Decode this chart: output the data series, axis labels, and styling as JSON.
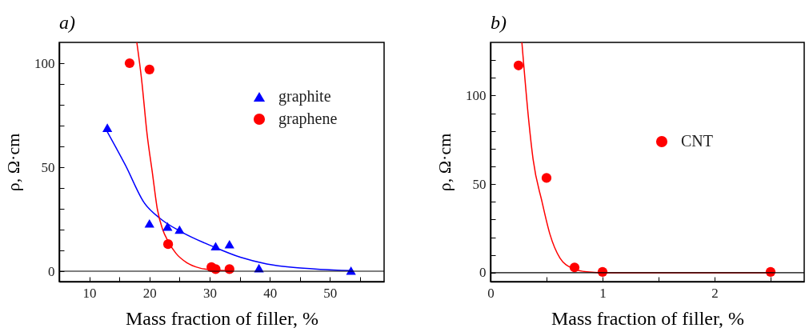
{
  "chart_data": [
    {
      "type": "scatter",
      "title": "a)",
      "xlabel": "Mass fraction of filler, %",
      "ylabel": "ρ, Ω·cm",
      "xlim": [
        5,
        59
      ],
      "ylim": [
        -5,
        110
      ],
      "xticks": [
        10,
        {
          "value": 15,
          "label": null
        },
        20,
        {
          "value": 25,
          "label": null
        },
        30,
        {
          "value": 35,
          "label": null
        },
        40,
        {
          "value": 45,
          "label": null
        },
        50,
        {
          "value": 55,
          "label": null
        }
      ],
      "yticks": [
        0,
        {
          "value": 10,
          "label": null
        },
        {
          "value": 20,
          "label": null
        },
        {
          "value": 30,
          "label": null
        },
        {
          "value": 40,
          "label": null
        },
        50,
        {
          "value": 60,
          "label": null
        },
        {
          "value": 70,
          "label": null
        },
        {
          "value": 80,
          "label": null
        },
        {
          "value": 90,
          "label": null
        },
        100
      ],
      "grid": false,
      "legend": "top right",
      "ref_lines": [
        {
          "axis": "y",
          "value": 0,
          "color": "#000000"
        }
      ],
      "series": [
        {
          "name": "graphite",
          "color": "#0000ff",
          "marker": "triangle",
          "x": [
            13,
            20,
            23,
            25,
            31,
            33.3,
            38.2,
            53.5
          ],
          "values": [
            69,
            23,
            21.5,
            20,
            12,
            13,
            1.5,
            0.3
          ]
        },
        {
          "name": "graphene",
          "color": "#ff0000",
          "marker": "circle",
          "x": [
            16.7,
            20,
            23.1,
            30.3,
            31,
            33.3
          ],
          "values": [
            100,
            97,
            13,
            2,
            1,
            1
          ]
        },
        {
          "type": "line",
          "color": "#0000ff",
          "x": [
            13,
            16,
            19.1,
            21.8,
            25.3,
            30.6,
            35.1,
            39.5,
            43.9,
            48.4,
            53.5
          ],
          "values": [
            67,
            51,
            33,
            25.3,
            18.9,
            11.8,
            6.7,
            3.5,
            1.8,
            0.9,
            0.3
          ]
        },
        {
          "type": "line",
          "color": "#ff0000",
          "x": [
            17.9,
            18.7,
            19.6,
            20.5,
            21.3,
            22.2,
            23.1,
            24.4,
            26.2,
            28.4,
            30.6,
            33.3
          ],
          "values": [
            110,
            92,
            66,
            47,
            30,
            20,
            14.4,
            8.6,
            4.1,
            1.5,
            0.6,
            0.3
          ]
        }
      ]
    },
    {
      "type": "scatter",
      "title": "b)",
      "xlabel": "Mass fraction of filler, %",
      "ylabel": "ρ, Ω·cm",
      "xlim": [
        0,
        2.8
      ],
      "ylim": [
        -5,
        130
      ],
      "xticks": [
        0,
        {
          "value": 0.5,
          "label": null
        },
        1,
        {
          "value": 1.5,
          "label": null
        },
        2,
        {
          "value": 2.5,
          "label": null
        }
      ],
      "yticks": [
        0,
        {
          "value": 10,
          "label": null
        },
        {
          "value": 20,
          "label": null
        },
        {
          "value": 30,
          "label": null
        },
        {
          "value": 40,
          "label": null
        },
        50,
        {
          "value": 60,
          "label": null
        },
        {
          "value": 70,
          "label": null
        },
        {
          "value": 80,
          "label": null
        },
        {
          "value": 90,
          "label": null
        },
        100,
        {
          "value": 110,
          "label": null
        },
        {
          "value": 120,
          "label": null
        }
      ],
      "grid": false,
      "legend": "top right",
      "ref_lines": [
        {
          "axis": "y",
          "value": 0,
          "color": "#000000"
        }
      ],
      "series": [
        {
          "name": "CNT",
          "color": "#ff0000",
          "marker": "circle",
          "x": [
            0.25,
            0.5,
            0.75,
            1.0,
            2.5
          ],
          "values": [
            117,
            53.5,
            3,
            0.5,
            0.5
          ]
        },
        {
          "type": "line",
          "color": "#ff0000",
          "x": [
            0.28,
            0.34,
            0.38,
            0.46,
            0.53,
            0.62,
            0.74,
            0.86,
            1.0,
            2.5
          ],
          "values": [
            130,
            86.6,
            64,
            40,
            21.8,
            8.3,
            2.3,
            0.5,
            0,
            0
          ]
        }
      ]
    }
  ]
}
